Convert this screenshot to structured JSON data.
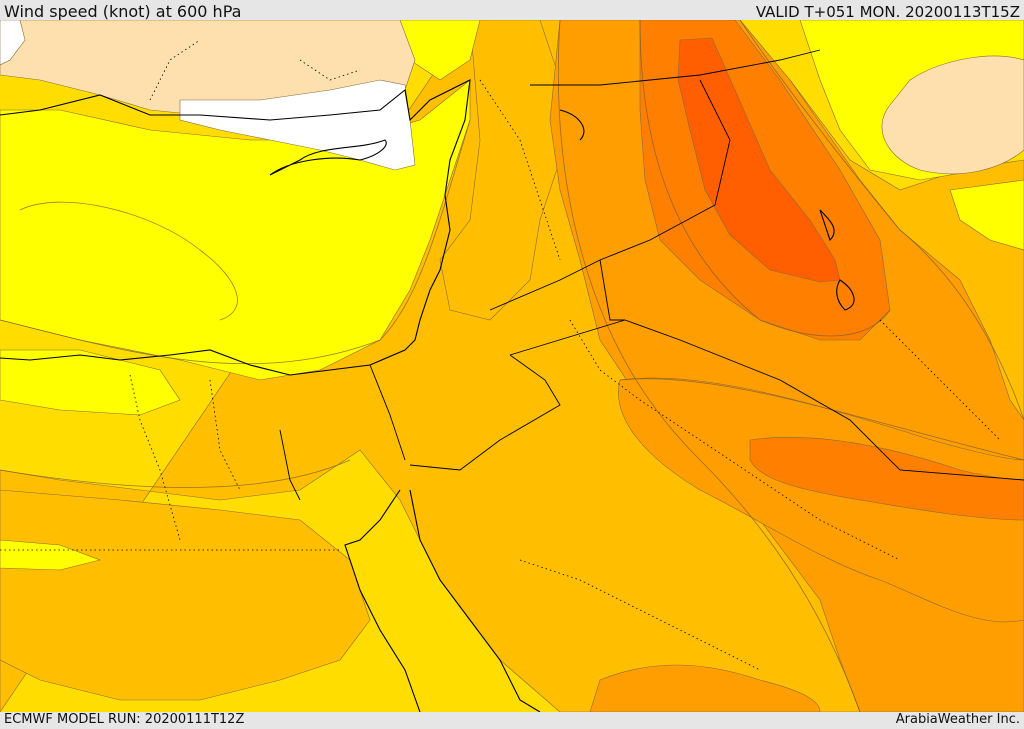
{
  "header": {
    "title": "Wind speed (knot) at 600 hPa",
    "valid": "VALID T+051 MON. 20200113T15Z"
  },
  "footer": {
    "model_run": "ECMWF MODEL RUN: 20200111T12Z",
    "credit": "ArabiaWeather Inc."
  },
  "palette": {
    "white": "#ffffff",
    "tan": "#fde0ae",
    "yellow": "#ffff00",
    "gold": "#ffdd00",
    "amber": "#ffbe00",
    "orange": "#ff9e00",
    "dark_orange": "#ff7f00",
    "red_orange": "#ff5f00",
    "sea_mask": "#fbfbfb"
  }
}
